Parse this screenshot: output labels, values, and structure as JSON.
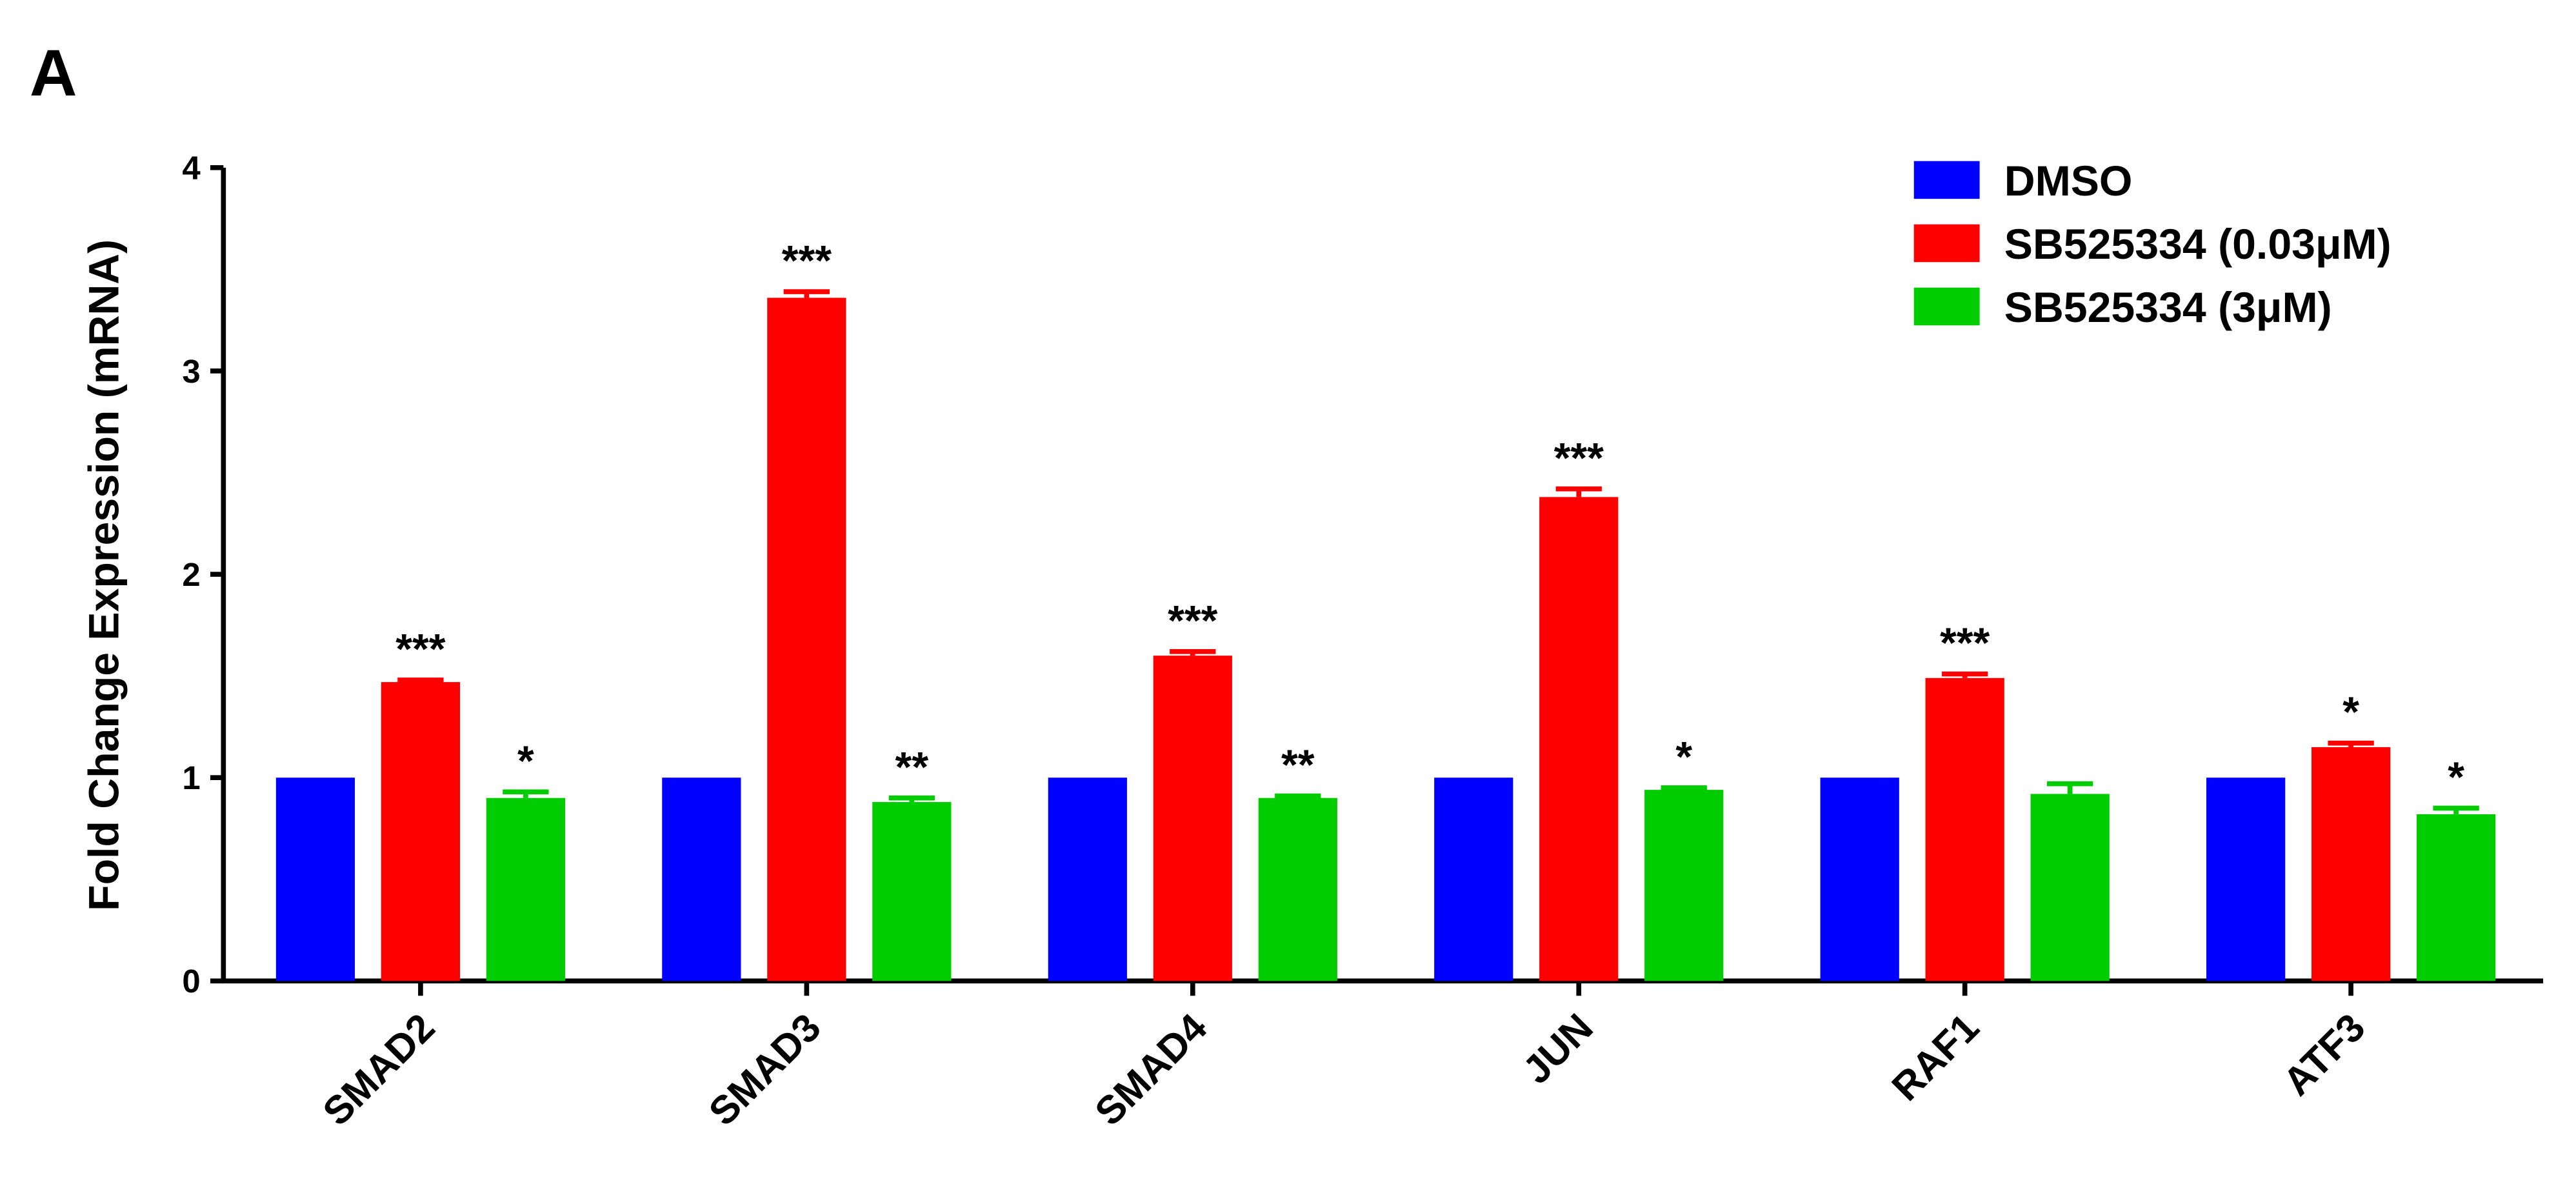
{
  "panel_label": "A",
  "chart_data": {
    "type": "bar",
    "y_label": "Fold Change Expression (mRNA)",
    "categories": [
      "SMAD2",
      "SMAD3",
      "SMAD4",
      "JUN",
      "RAF1",
      "ATF3"
    ],
    "series": [
      {
        "name": "DMSO",
        "color": "#0000ff",
        "values": [
          1.0,
          1.0,
          1.0,
          1.0,
          1.0,
          1.0
        ],
        "errors": [
          0,
          0,
          0,
          0,
          0,
          0
        ],
        "annotations": [
          null,
          null,
          null,
          null,
          null,
          null
        ]
      },
      {
        "name": "SB525334 (0.03μM)",
        "color": "#ff0000",
        "values": [
          1.47,
          3.36,
          1.6,
          2.38,
          1.49,
          1.15
        ],
        "errors": [
          0.01,
          0.03,
          0.02,
          0.04,
          0.02,
          0.02
        ],
        "annotations": [
          "***",
          "***",
          "***",
          "***",
          "***",
          "*"
        ]
      },
      {
        "name": "SB525334 (3μM)",
        "color": "#00cc00",
        "values": [
          0.9,
          0.88,
          0.9,
          0.94,
          0.92,
          0.82
        ],
        "errors": [
          0.03,
          0.02,
          0.01,
          0.01,
          0.05,
          0.03
        ],
        "annotations": [
          "*",
          "**",
          "**",
          "*",
          null,
          "*"
        ]
      }
    ],
    "ylim": [
      0,
      4
    ],
    "yticks": [
      0,
      1,
      2,
      3,
      4
    ],
    "grid": false,
    "legend": "upper right"
  }
}
